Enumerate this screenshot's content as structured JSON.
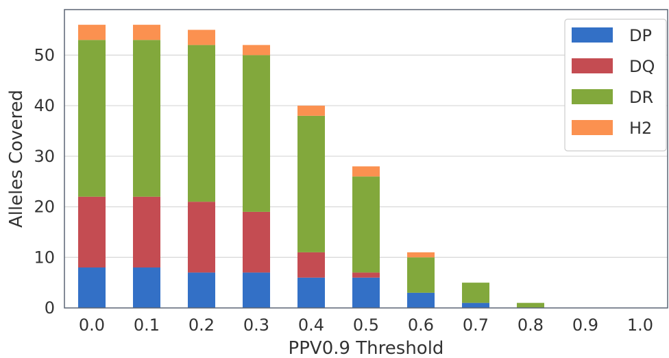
{
  "chart_data": {
    "type": "bar",
    "stacked": true,
    "title": "",
    "xlabel": "PPV0.9 Threshold",
    "ylabel": "Alleles Covered",
    "categories": [
      "0.0",
      "0.1",
      "0.2",
      "0.3",
      "0.4",
      "0.5",
      "0.6",
      "0.7",
      "0.8",
      "0.9",
      "1.0"
    ],
    "ylim": [
      0,
      59
    ],
    "yticks": [
      0,
      10,
      20,
      30,
      40,
      50
    ],
    "grid": true,
    "legend_position": "top-right",
    "series": [
      {
        "name": "DP",
        "color": "#3370c6",
        "values": [
          8,
          8,
          7,
          7,
          6,
          6,
          3,
          1,
          0,
          0,
          0
        ]
      },
      {
        "name": "DQ",
        "color": "#c44c52",
        "values": [
          14,
          14,
          14,
          12,
          5,
          1,
          0,
          0,
          0,
          0,
          0
        ]
      },
      {
        "name": "DR",
        "color": "#82a83c",
        "values": [
          31,
          31,
          31,
          31,
          27,
          19,
          7,
          4,
          1,
          0,
          0
        ]
      },
      {
        "name": "H2",
        "color": "#fb9150",
        "values": [
          3,
          3,
          3,
          2,
          2,
          2,
          1,
          0,
          0,
          0,
          0
        ]
      }
    ]
  }
}
